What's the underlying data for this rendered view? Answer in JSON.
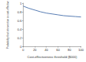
{
  "chart_data": {
    "type": "line",
    "x_label": "Cost-effectiveness threshold ($000)",
    "y_label": "Probability that intervention is cost-effective",
    "x": [
      0,
      10,
      20,
      30,
      40,
      50,
      60,
      70,
      80,
      90,
      100
    ],
    "values": [
      0.93,
      0.88,
      0.84,
      0.8,
      0.77,
      0.75,
      0.73,
      0.71,
      0.7,
      0.69,
      0.68
    ],
    "color": "#5b7fb5",
    "marker": "none",
    "xlim": [
      0,
      100
    ],
    "xticks": [
      0,
      20,
      40,
      60,
      80,
      100
    ],
    "ylim": [
      0,
      1
    ],
    "yticks": [
      0,
      0.2,
      0.4,
      0.6,
      0.8,
      1
    ],
    "grid": false
  }
}
